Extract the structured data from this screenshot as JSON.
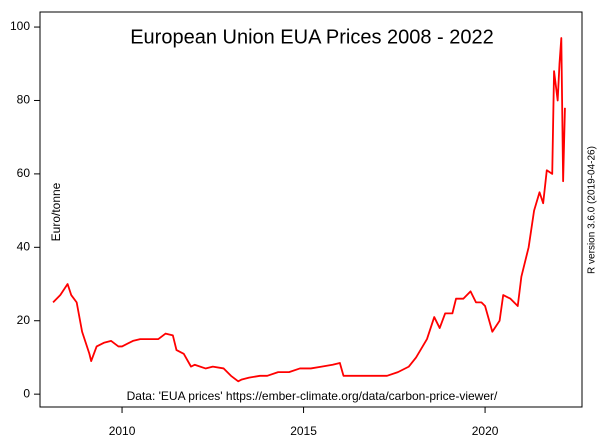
{
  "chart_data": {
    "type": "line",
    "title": "European Union EUA Prices 2008 - 2022",
    "y_label": "Euro/tonne",
    "annotations": [
      "Data: 'EUA prices' https://ember-climate.org/data/carbon-price-viewer/",
      "R version 3.6.0 (2019-04-26)"
    ],
    "color": "#ff0000",
    "x": [
      2008.1,
      2008.3,
      2008.5,
      2008.6,
      2008.75,
      2008.9,
      2009.1,
      2009.15,
      2009.3,
      2009.5,
      2009.7,
      2009.9,
      2010.0,
      2010.3,
      2010.5,
      2010.8,
      2011.0,
      2011.2,
      2011.4,
      2011.5,
      2011.7,
      2011.9,
      2012.0,
      2012.3,
      2012.5,
      2012.8,
      2013.0,
      2013.2,
      2013.3,
      2013.5,
      2013.8,
      2014.0,
      2014.3,
      2014.6,
      2014.9,
      2015.2,
      2015.5,
      2015.8,
      2016.0,
      2016.1,
      2016.4,
      2016.7,
      2017.0,
      2017.3,
      2017.6,
      2017.9,
      2018.1,
      2018.4,
      2018.6,
      2018.75,
      2018.9,
      2019.1,
      2019.2,
      2019.4,
      2019.6,
      2019.75,
      2019.9,
      2020.0,
      2020.2,
      2020.4,
      2020.5,
      2020.7,
      2020.9,
      2021.0,
      2021.2,
      2021.35,
      2021.5,
      2021.6,
      2021.7,
      2021.85,
      2021.9,
      2022.0,
      2022.05,
      2022.1,
      2022.15,
      2022.2
    ],
    "values": [
      25,
      27,
      30,
      27,
      25,
      17,
      11,
      9,
      13,
      14,
      14.5,
      13,
      13,
      14.5,
      15,
      15,
      15,
      16.5,
      16,
      12,
      11,
      7.5,
      8,
      7,
      7.5,
      7,
      5,
      3.5,
      4,
      4.5,
      5,
      5,
      6,
      6,
      7,
      7,
      7.5,
      8,
      8.5,
      5,
      5,
      5,
      5,
      5,
      6,
      7.5,
      10,
      15,
      21,
      18,
      22,
      22,
      26,
      26,
      28,
      25,
      25,
      24,
      17,
      20,
      27,
      26,
      24,
      32,
      40,
      50,
      55,
      52,
      61,
      60,
      88,
      80,
      90,
      97,
      58,
      78
    ],
    "xlim": [
      2007.74,
      2022.67
    ],
    "xticks": [
      2010,
      2015,
      2020
    ],
    "ylim": [
      -3.5,
      104.1
    ],
    "yticks": [
      0,
      20,
      40,
      60,
      80,
      100
    ]
  }
}
